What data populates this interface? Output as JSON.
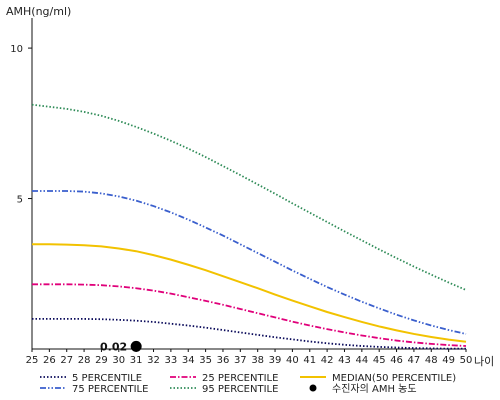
{
  "chart_data": {
    "type": "line",
    "ylabel": "AMH(ng/ml)",
    "xlabel": "나이",
    "x": [
      25,
      26,
      27,
      28,
      29,
      30,
      31,
      32,
      33,
      34,
      35,
      36,
      37,
      38,
      39,
      40,
      41,
      42,
      43,
      44,
      45,
      46,
      47,
      48,
      49,
      50
    ],
    "xlim": [
      25,
      50
    ],
    "ylim": [
      0,
      11
    ],
    "yticks": [
      5,
      10
    ],
    "grid": false,
    "legend_position": "bottom",
    "series": [
      {
        "name": "5 PERCENTILE",
        "color": "#0a0a5a",
        "dash": "dotted",
        "values": [
          1.0,
          1.0,
          1.0,
          1.0,
          0.99,
          0.97,
          0.94,
          0.9,
          0.84,
          0.78,
          0.71,
          0.63,
          0.55,
          0.47,
          0.39,
          0.32,
          0.25,
          0.19,
          0.14,
          0.1,
          0.07,
          0.05,
          0.03,
          0.02,
          0.01,
          0.01
        ]
      },
      {
        "name": "25 PERCENTILE",
        "color": "#e0007a",
        "dash": "dashdot",
        "values": [
          2.15,
          2.15,
          2.15,
          2.14,
          2.12,
          2.08,
          2.02,
          1.94,
          1.84,
          1.72,
          1.6,
          1.47,
          1.33,
          1.19,
          1.05,
          0.91,
          0.78,
          0.66,
          0.55,
          0.45,
          0.36,
          0.28,
          0.22,
          0.17,
          0.13,
          0.1
        ]
      },
      {
        "name": "MEDIAN(50 PERCENTILE)",
        "color": "#f2c200",
        "dash": "solid",
        "values": [
          3.48,
          3.48,
          3.47,
          3.45,
          3.41,
          3.34,
          3.25,
          3.12,
          2.97,
          2.8,
          2.62,
          2.42,
          2.22,
          2.02,
          1.81,
          1.61,
          1.42,
          1.23,
          1.06,
          0.9,
          0.75,
          0.62,
          0.5,
          0.4,
          0.31,
          0.24
        ]
      },
      {
        "name": "75 PERCENTILE",
        "color": "#3a5fcd",
        "dash": "dashdotdot",
        "values": [
          5.25,
          5.25,
          5.25,
          5.23,
          5.17,
          5.07,
          4.93,
          4.75,
          4.54,
          4.3,
          4.04,
          3.77,
          3.48,
          3.19,
          2.9,
          2.61,
          2.33,
          2.06,
          1.81,
          1.57,
          1.35,
          1.14,
          0.95,
          0.78,
          0.63,
          0.5
        ]
      },
      {
        "name": "95 PERCENTILE",
        "color": "#2e8b57",
        "dash": "dotted",
        "values": [
          8.12,
          8.05,
          7.98,
          7.88,
          7.75,
          7.58,
          7.38,
          7.16,
          6.92,
          6.66,
          6.38,
          6.08,
          5.78,
          5.47,
          5.16,
          4.84,
          4.53,
          4.22,
          3.91,
          3.61,
          3.31,
          3.02,
          2.74,
          2.47,
          2.21,
          1.96
        ]
      }
    ],
    "patient_point": {
      "name": "수진자의 AMH 농도",
      "x": 31,
      "y": 0.02,
      "label": "0.02",
      "color": "#000000"
    }
  }
}
